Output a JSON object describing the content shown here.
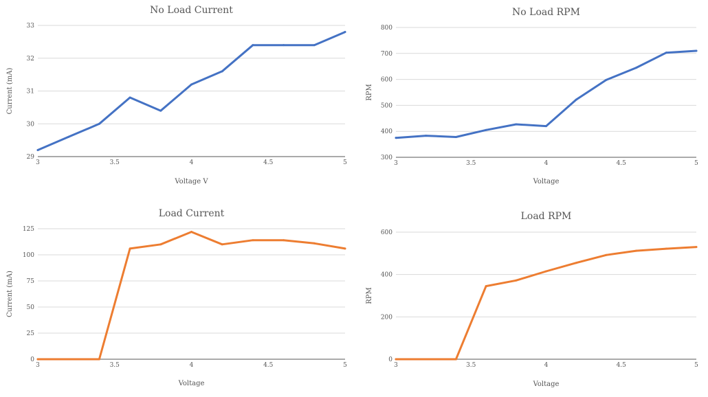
{
  "chart_data": [
    {
      "type": "line",
      "title": "No Load Current",
      "xlabel": "Voltage V",
      "ylabel": "Current (mA)",
      "xlim": [
        3,
        5
      ],
      "ylim": [
        29,
        33
      ],
      "xticks": [
        "3",
        "3.5",
        "4",
        "4.5",
        "5"
      ],
      "yticks": [
        "29",
        "30",
        "31",
        "32",
        "33"
      ],
      "grid": true,
      "color": "#4472C4",
      "x": [
        3,
        3.2,
        3.4,
        3.6,
        3.8,
        4,
        4.2,
        4.4,
        4.6,
        4.8,
        5
      ],
      "values": [
        29.2,
        29.6,
        30.0,
        30.8,
        30.4,
        31.2,
        31.6,
        32.4,
        32.4,
        32.4,
        32.8
      ]
    },
    {
      "type": "line",
      "title": "No Load RPM",
      "xlabel": "Voltage",
      "ylabel": "RPM",
      "xlim": [
        3,
        5
      ],
      "ylim": [
        300,
        800
      ],
      "xticks": [
        "3",
        "3.5",
        "4",
        "4.5",
        "5"
      ],
      "yticks": [
        "300",
        "400",
        "500",
        "600",
        "700",
        "800"
      ],
      "grid": true,
      "color": "#4472C4",
      "x": [
        3,
        3.2,
        3.4,
        3.6,
        3.8,
        4,
        4.2,
        4.4,
        4.6,
        4.8,
        5
      ],
      "values": [
        375,
        383,
        378,
        405,
        427,
        420,
        522,
        598,
        645,
        703,
        710
      ]
    },
    {
      "type": "line",
      "title": "Load Current",
      "xlabel": "Voltage",
      "ylabel": "Current (mA)",
      "xlim": [
        3,
        5
      ],
      "ylim": [
        0,
        125
      ],
      "xticks": [
        "3",
        "3.5",
        "4",
        "4.5",
        "5"
      ],
      "yticks": [
        "0",
        "25",
        "50",
        "75",
        "100",
        "125"
      ],
      "grid": true,
      "color": "#ED7D31",
      "x": [
        3,
        3.2,
        3.4,
        3.6,
        3.8,
        4,
        4.2,
        4.4,
        4.6,
        4.8,
        5
      ],
      "values": [
        0,
        0,
        0,
        106,
        110,
        122,
        110,
        114,
        114,
        111,
        106
      ]
    },
    {
      "type": "line",
      "title": "Load RPM",
      "xlabel": "Voltage",
      "ylabel": "RPM",
      "xlim": [
        3,
        5
      ],
      "ylim": [
        0,
        600
      ],
      "xticks": [
        "3",
        "3.5",
        "4",
        "4.5",
        "5"
      ],
      "yticks": [
        "0",
        "200",
        "400",
        "600"
      ],
      "grid": true,
      "color": "#ED7D31",
      "x": [
        3,
        3.2,
        3.4,
        3.6,
        3.8,
        4,
        4.2,
        4.4,
        4.6,
        4.8,
        5
      ],
      "values": [
        0,
        0,
        0,
        345,
        372,
        415,
        455,
        492,
        512,
        522,
        530
      ]
    }
  ]
}
